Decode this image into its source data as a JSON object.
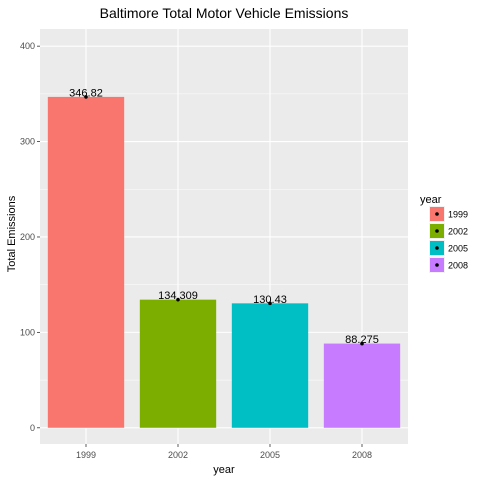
{
  "chart_data": {
    "type": "bar",
    "title": "Baltimore Total Motor Vehicle Emissions",
    "xlabel": "year",
    "ylabel": "Total Emissions",
    "categories": [
      "1999",
      "2002",
      "2005",
      "2008"
    ],
    "values": [
      346.82,
      134.309,
      130.43,
      88.275
    ],
    "value_labels": [
      "346.82",
      "134.309",
      "130.43",
      "88.275"
    ],
    "ylim": [
      -17,
      418
    ],
    "yticks": [
      0,
      100,
      200,
      300,
      400
    ],
    "grid": true,
    "legend": {
      "title": "year",
      "placement": "right",
      "entries": [
        "1999",
        "2002",
        "2005",
        "2008"
      ]
    },
    "colors": [
      "#F8766D",
      "#7CAE00",
      "#00BFC4",
      "#C77CFF"
    ],
    "panel_color": "#EBEBEB",
    "grid_color": "#FFFFFF",
    "point_color": "#000000"
  }
}
